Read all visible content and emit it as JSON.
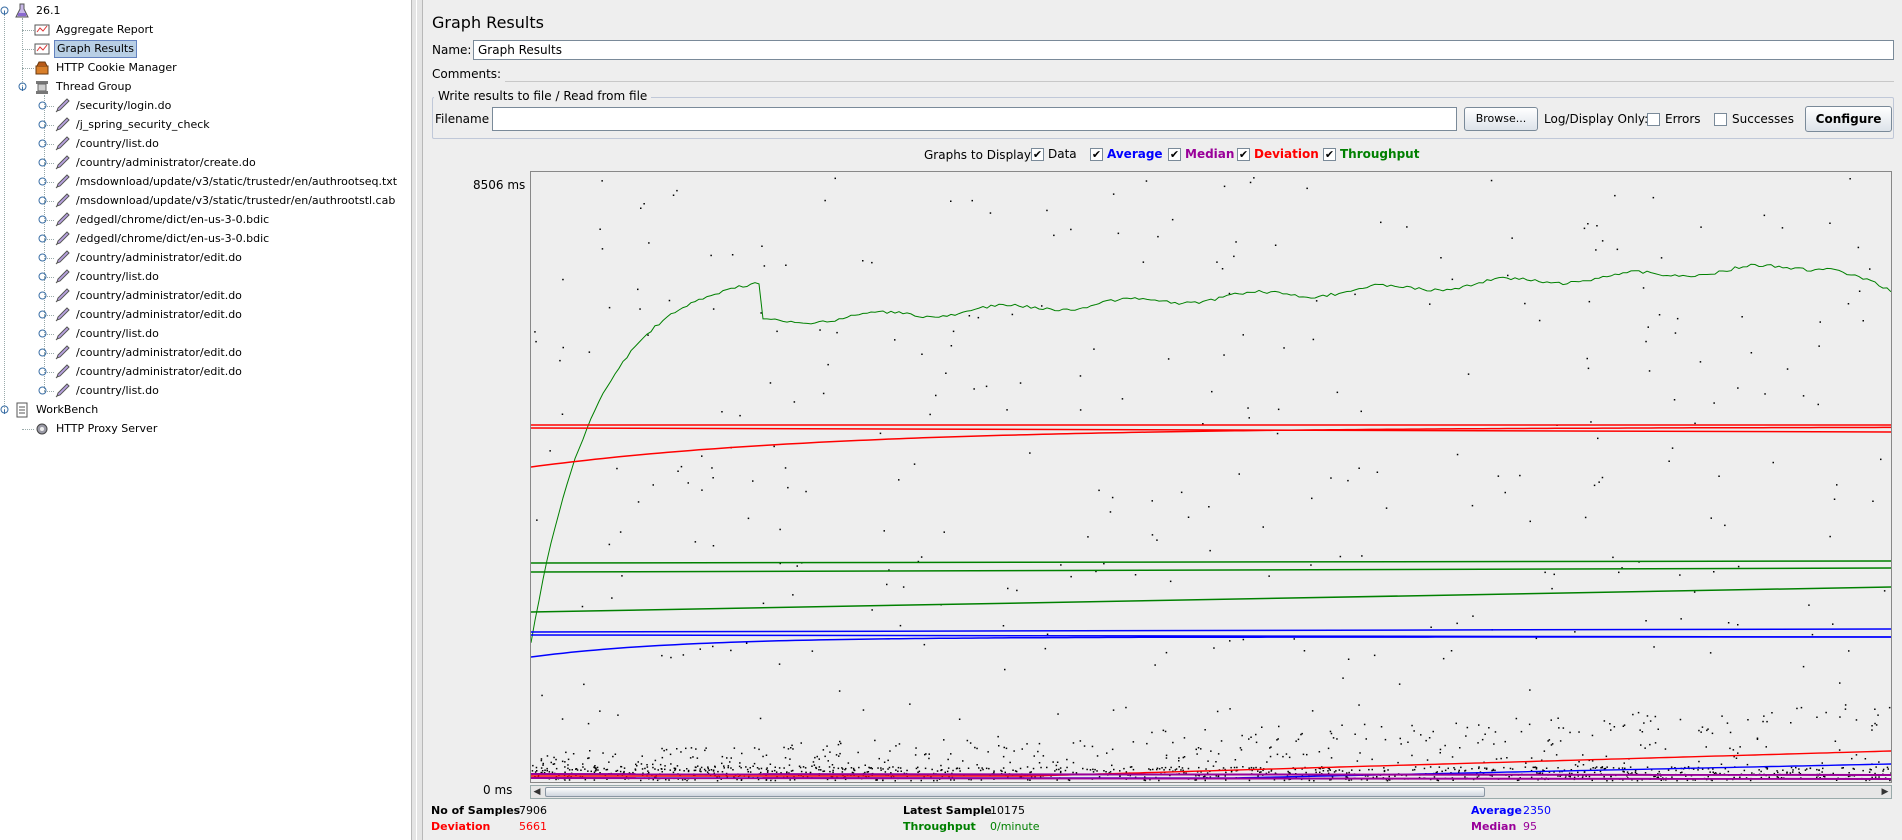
{
  "tree": {
    "root_label": "26.1",
    "items": [
      {
        "label": "Aggregate Report"
      },
      {
        "label": "Graph Results"
      },
      {
        "label": "HTTP Cookie Manager"
      },
      {
        "label": "Thread Group"
      }
    ],
    "samplers": [
      "/security/login.do",
      "/j_spring_security_check",
      "/country/list.do",
      "/country/administrator/create.do",
      "/msdownload/update/v3/static/trustedr/en/authrootseq.txt",
      "/msdownload/update/v3/static/trustedr/en/authrootstl.cab",
      "/edgedl/chrome/dict/en-us-3-0.bdic",
      "/edgedl/chrome/dict/en-us-3-0.bdic",
      "/country/administrator/edit.do",
      "/country/list.do",
      "/country/administrator/edit.do",
      "/country/administrator/edit.do",
      "/country/list.do",
      "/country/administrator/edit.do",
      "/country/administrator/edit.do",
      "/country/list.do"
    ],
    "workbench_label": "WorkBench",
    "proxy_label": "HTTP Proxy Server"
  },
  "panel": {
    "title": "Graph Results",
    "name_label": "Name:",
    "name_value": "Graph Results",
    "comments_label": "Comments:",
    "comments_value": "",
    "file_group_title": "Write results to file / Read from file",
    "filename_label": "Filename",
    "filename_value": "",
    "browse_label": "Browse...",
    "log_display_label": "Log/Display Only:",
    "errors_label": "Errors",
    "successes_label": "Successes",
    "configure_label": "Configure"
  },
  "graphs_to_display": {
    "label": "Graphs to Display",
    "options": [
      {
        "label": "Data",
        "checked": true,
        "color": "#000000"
      },
      {
        "label": "Average",
        "checked": true,
        "color": "#0000ff"
      },
      {
        "label": "Median",
        "checked": true,
        "color": "#990099"
      },
      {
        "label": "Deviation",
        "checked": true,
        "color": "#ff0000"
      },
      {
        "label": "Throughput",
        "checked": true,
        "color": "#008000"
      }
    ]
  },
  "chart_data": {
    "type": "line",
    "y_max_label": "8506  ms",
    "y_min_label": "0  ms",
    "ylim": [
      0,
      8506
    ],
    "series": [
      {
        "name": "Throughput",
        "color": "#008000"
      },
      {
        "name": "Deviation",
        "color": "#ff0000"
      },
      {
        "name": "Average",
        "color": "#0000ff"
      },
      {
        "name": "Median",
        "color": "#990099"
      },
      {
        "name": "Data",
        "color": "#000000"
      }
    ]
  },
  "stats": {
    "samples_label": "No of Samples",
    "samples_value": "7906",
    "latest_label": "Latest Sample",
    "latest_value": "10175",
    "average_label": "Average",
    "average_value": "2350",
    "deviation_label": "Deviation",
    "deviation_value": "5661",
    "throughput_label": "Throughput",
    "throughput_value": "0/minute",
    "median_label": "Median",
    "median_value": "95"
  }
}
